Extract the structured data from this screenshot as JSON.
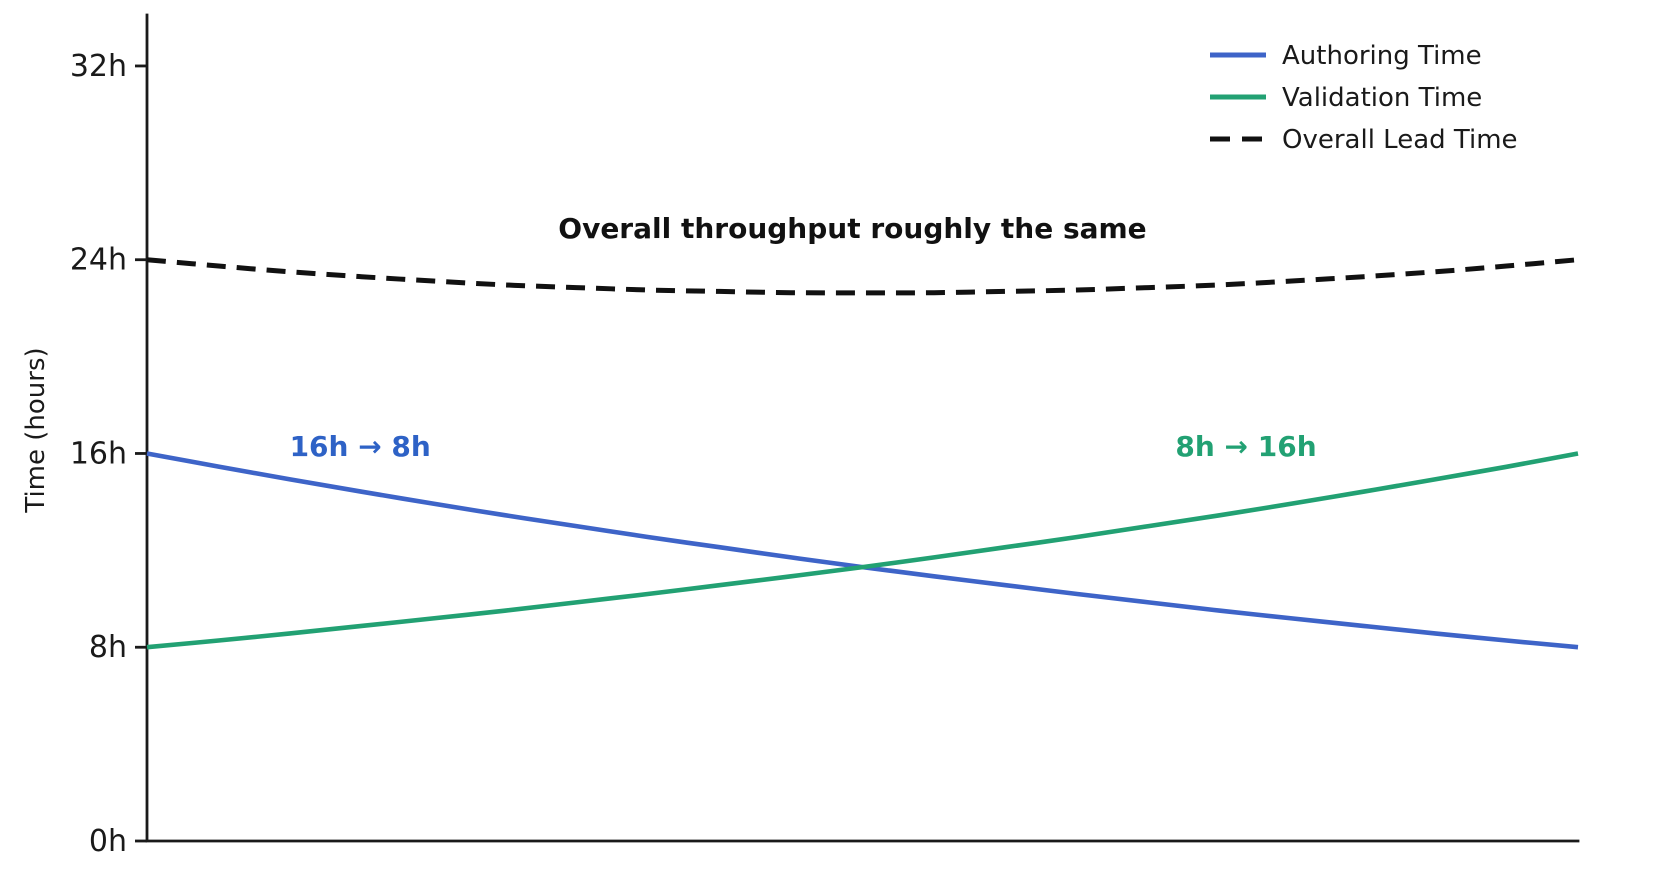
{
  "chart_data": {
    "type": "line",
    "title": "",
    "xlabel": "",
    "ylabel": "Time (hours)",
    "xlim": [
      0,
      1
    ],
    "ylim": [
      0,
      34
    ],
    "grid": false,
    "x_tick_labels": "none",
    "legend_position": "top-right",
    "legend_frame": false,
    "x": [
      0,
      0.05,
      0.1,
      0.15,
      0.2,
      0.25,
      0.3,
      0.35,
      0.4,
      0.45,
      0.5,
      0.55,
      0.6,
      0.65,
      0.7,
      0.75,
      0.8,
      0.85,
      0.9,
      0.95,
      1
    ],
    "series": [
      {
        "name": "Authoring Time",
        "color": "#3e64c8",
        "style": "solid",
        "start_value_hours": 16,
        "end_value_hours": 8,
        "values": [
          16,
          15.46,
          14.93,
          14.42,
          13.93,
          13.45,
          13.0,
          12.55,
          12.13,
          11.71,
          11.31,
          10.93,
          10.56,
          10.2,
          9.85,
          9.51,
          9.19,
          8.88,
          8.57,
          8.28,
          8
        ]
      },
      {
        "name": "Validation Time",
        "color": "#22a173",
        "style": "solid",
        "start_value_hours": 8,
        "end_value_hours": 16,
        "values": [
          8,
          8.28,
          8.57,
          8.88,
          9.19,
          9.51,
          9.85,
          10.2,
          10.56,
          10.93,
          11.31,
          11.71,
          12.13,
          12.55,
          13.0,
          13.45,
          13.93,
          14.42,
          14.93,
          15.45,
          16
        ]
      },
      {
        "name": "Overall Lead Time",
        "color": "#111111",
        "style": "dashed",
        "start_value_hours": 24,
        "min_value_hours": 22.63,
        "end_value_hours": 24,
        "values": [
          24,
          23.74,
          23.5,
          23.3,
          23.12,
          22.96,
          22.85,
          22.75,
          22.69,
          22.64,
          22.63,
          22.64,
          22.69,
          22.75,
          22.85,
          22.96,
          23.12,
          23.3,
          23.5,
          23.74,
          24
        ]
      }
    ],
    "yticks": [
      {
        "value": 0,
        "label": "0h"
      },
      {
        "value": 8,
        "label": "8h"
      },
      {
        "value": 16,
        "label": "16h"
      },
      {
        "value": 24,
        "label": "24h"
      },
      {
        "value": 32,
        "label": "32h"
      }
    ],
    "annotations": [
      {
        "text": "Overall throughput roughly the same",
        "color": "#111111",
        "bold": true,
        "x": 0.493,
        "y": 25.3
      },
      {
        "text": "16h → 8h",
        "color": "#2e62c6",
        "bold": true,
        "x": 0.149,
        "y": 16.3
      },
      {
        "text": "8h → 16h",
        "color": "#22a173",
        "bold": true,
        "x": 0.768,
        "y": 16.3
      }
    ],
    "axis_color": "#1a1a1a",
    "text_color": "#1a1a1a",
    "background_color": "#ffffff"
  }
}
